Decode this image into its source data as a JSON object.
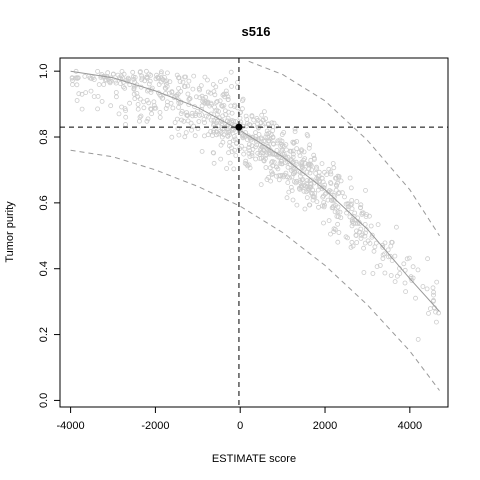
{
  "chart_data": {
    "type": "scatter",
    "title": "s516",
    "xlabel": "ESTIMATE score",
    "ylabel": "Tumor purity",
    "xlim": [
      -4250,
      4900
    ],
    "ylim": [
      -0.02,
      1.04
    ],
    "xticks": [
      -4000,
      -2000,
      0,
      2000,
      4000
    ],
    "xtick_labels": [
      "-4000",
      "-2000",
      "0",
      "2000",
      "4000"
    ],
    "yticks": [
      0.0,
      0.2,
      0.4,
      0.6,
      0.8,
      1.0
    ],
    "ytick_labels": [
      "0.0",
      "0.2",
      "0.4",
      "0.6",
      "0.8",
      "1.0"
    ],
    "grid": false,
    "colors": {
      "points": "#cccccc",
      "fit": "#999999",
      "bounds": "#999999",
      "marker": "#000000"
    },
    "highlight_point": {
      "x": -30,
      "y": 0.83
    },
    "reference_lines": {
      "vertical_x": -30,
      "horizontal_y": 0.83
    },
    "fit_curve": {
      "x": [
        -4000,
        -3000,
        -2000,
        -1000,
        0,
        1000,
        2000,
        3000,
        4000,
        4700
      ],
      "y": [
        1.0,
        0.98,
        0.94,
        0.89,
        0.82,
        0.74,
        0.64,
        0.52,
        0.37,
        0.27
      ]
    },
    "upper_bound": {
      "x": [
        200,
        1000,
        2000,
        3000,
        4000,
        4700
      ],
      "y": [
        1.03,
        0.99,
        0.91,
        0.79,
        0.64,
        0.5
      ]
    },
    "lower_bound": {
      "x": [
        -4000,
        -3000,
        -2000,
        -1000,
        0,
        1000,
        2000,
        3000,
        4000,
        4700
      ],
      "y": [
        0.76,
        0.74,
        0.7,
        0.65,
        0.59,
        0.51,
        0.41,
        0.29,
        0.15,
        0.03
      ]
    },
    "scatter_cloud": {
      "count": 900,
      "x_range": [
        -4000,
        4700
      ],
      "follows": "fit_curve",
      "spread": 0.09
    }
  }
}
